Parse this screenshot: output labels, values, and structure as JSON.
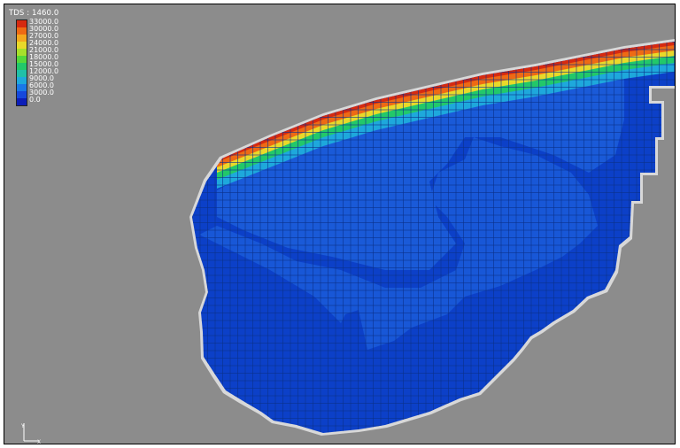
{
  "legend": {
    "title": "TDS : 1460.0",
    "entries": [
      {
        "label": "33000.0",
        "color": "#d62a10"
      },
      {
        "label": "30000.0",
        "color": "#ee6a14"
      },
      {
        "label": "27000.0",
        "color": "#f4a81e"
      },
      {
        "label": "24000.0",
        "color": "#e9d92a"
      },
      {
        "label": "21000.0",
        "color": "#a7e02a"
      },
      {
        "label": "18000.0",
        "color": "#55d83a"
      },
      {
        "label": "15000.0",
        "color": "#22c86a"
      },
      {
        "label": "12000.0",
        "color": "#1fc0a8"
      },
      {
        "label": "9000.0",
        "color": "#1ea8dc"
      },
      {
        "label": "6000.0",
        "color": "#1a78e8"
      },
      {
        "label": "3000.0",
        "color": "#1548dc"
      },
      {
        "label": "0.0",
        "color": "#0c1eb8"
      }
    ]
  },
  "colors": {
    "background": "#8c8c8c",
    "domain_low": "#0c40c8",
    "domain_mid": "#1a5ad8",
    "grid_line": "#0a2f8a",
    "boundary_halo": "#d8d8d8"
  },
  "axes": {
    "y_label": "Y",
    "x_label": "X"
  }
}
